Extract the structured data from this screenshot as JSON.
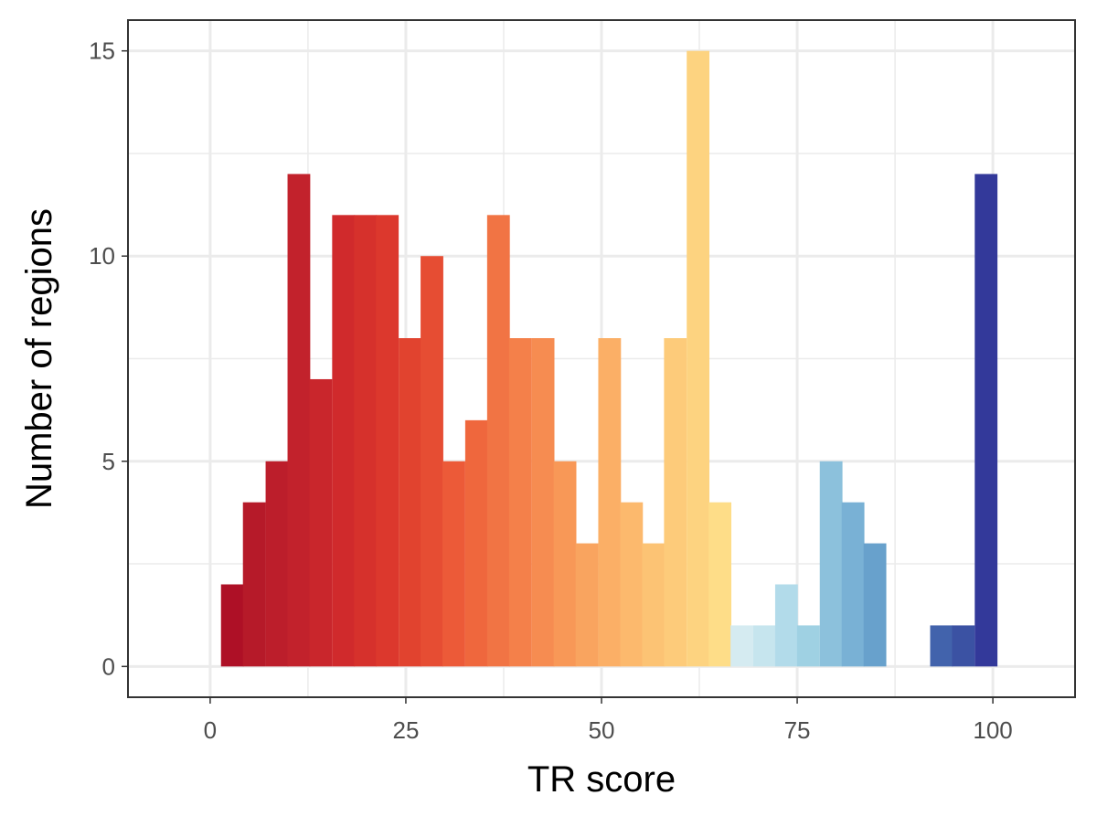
{
  "chart_data": {
    "type": "bar",
    "subtype": "histogram",
    "title": "",
    "xlabel": "TR score",
    "ylabel": "Number of regions",
    "xlim": [
      -10.5,
      110.5
    ],
    "ylim": [
      -0.75,
      15.75
    ],
    "x_ticks": [
      0,
      25,
      50,
      75,
      100
    ],
    "y_ticks": [
      0,
      5,
      10,
      15
    ],
    "x_tick_labels": [
      "0",
      "25",
      "50",
      "75",
      "100"
    ],
    "y_tick_labels": [
      "0",
      "5",
      "10",
      "15"
    ],
    "grid": true,
    "legend": "none",
    "bin_width": 2.83,
    "fill_gradient": "red-yellow-blue (low score red, high score dark blue)",
    "bins": [
      {
        "x": 2.8,
        "count": 2,
        "color": "#ae1026"
      },
      {
        "x": 5.6,
        "count": 4,
        "color": "#b61a29"
      },
      {
        "x": 8.5,
        "count": 5,
        "color": "#bc1e2b"
      },
      {
        "x": 11.3,
        "count": 12,
        "color": "#c2222c"
      },
      {
        "x": 14.1,
        "count": 7,
        "color": "#c9262c"
      },
      {
        "x": 17.0,
        "count": 11,
        "color": "#d02a2c"
      },
      {
        "x": 19.8,
        "count": 11,
        "color": "#d6312c"
      },
      {
        "x": 22.6,
        "count": 11,
        "color": "#dc382d"
      },
      {
        "x": 25.5,
        "count": 8,
        "color": "#e1432f"
      },
      {
        "x": 28.3,
        "count": 10,
        "color": "#e64d33"
      },
      {
        "x": 31.1,
        "count": 5,
        "color": "#ec5a38"
      },
      {
        "x": 34.0,
        "count": 6,
        "color": "#ef673d"
      },
      {
        "x": 36.8,
        "count": 11,
        "color": "#f17444"
      },
      {
        "x": 39.6,
        "count": 8,
        "color": "#f4804a"
      },
      {
        "x": 42.5,
        "count": 8,
        "color": "#f68c51"
      },
      {
        "x": 45.3,
        "count": 5,
        "color": "#f89857"
      },
      {
        "x": 48.1,
        "count": 3,
        "color": "#f9a45f"
      },
      {
        "x": 51.0,
        "count": 8,
        "color": "#fbaf66"
      },
      {
        "x": 53.8,
        "count": 4,
        "color": "#fcb96d"
      },
      {
        "x": 56.6,
        "count": 3,
        "color": "#fcc374"
      },
      {
        "x": 59.4,
        "count": 8,
        "color": "#fdcb7a"
      },
      {
        "x": 62.3,
        "count": 15,
        "color": "#fdd380"
      },
      {
        "x": 65.1,
        "count": 4,
        "color": "#fedd88"
      },
      {
        "x": 67.9,
        "count": 1,
        "color": "#d5ebf1"
      },
      {
        "x": 70.8,
        "count": 1,
        "color": "#c6e5ee"
      },
      {
        "x": 73.6,
        "count": 2,
        "color": "#b2dbea"
      },
      {
        "x": 76.4,
        "count": 1,
        "color": "#9fd1e3"
      },
      {
        "x": 79.3,
        "count": 5,
        "color": "#8cc1dc"
      },
      {
        "x": 82.1,
        "count": 4,
        "color": "#79b1d5"
      },
      {
        "x": 84.9,
        "count": 3,
        "color": "#68a1cc"
      },
      {
        "x": 87.7,
        "count": 0,
        "color": "#5584c0"
      },
      {
        "x": 90.6,
        "count": 0,
        "color": "#4a72b8"
      },
      {
        "x": 93.4,
        "count": 1,
        "color": "#4263ac"
      },
      {
        "x": 96.2,
        "count": 1,
        "color": "#3b52a3"
      },
      {
        "x": 99.1,
        "count": 12,
        "color": "#33399a"
      }
    ]
  }
}
